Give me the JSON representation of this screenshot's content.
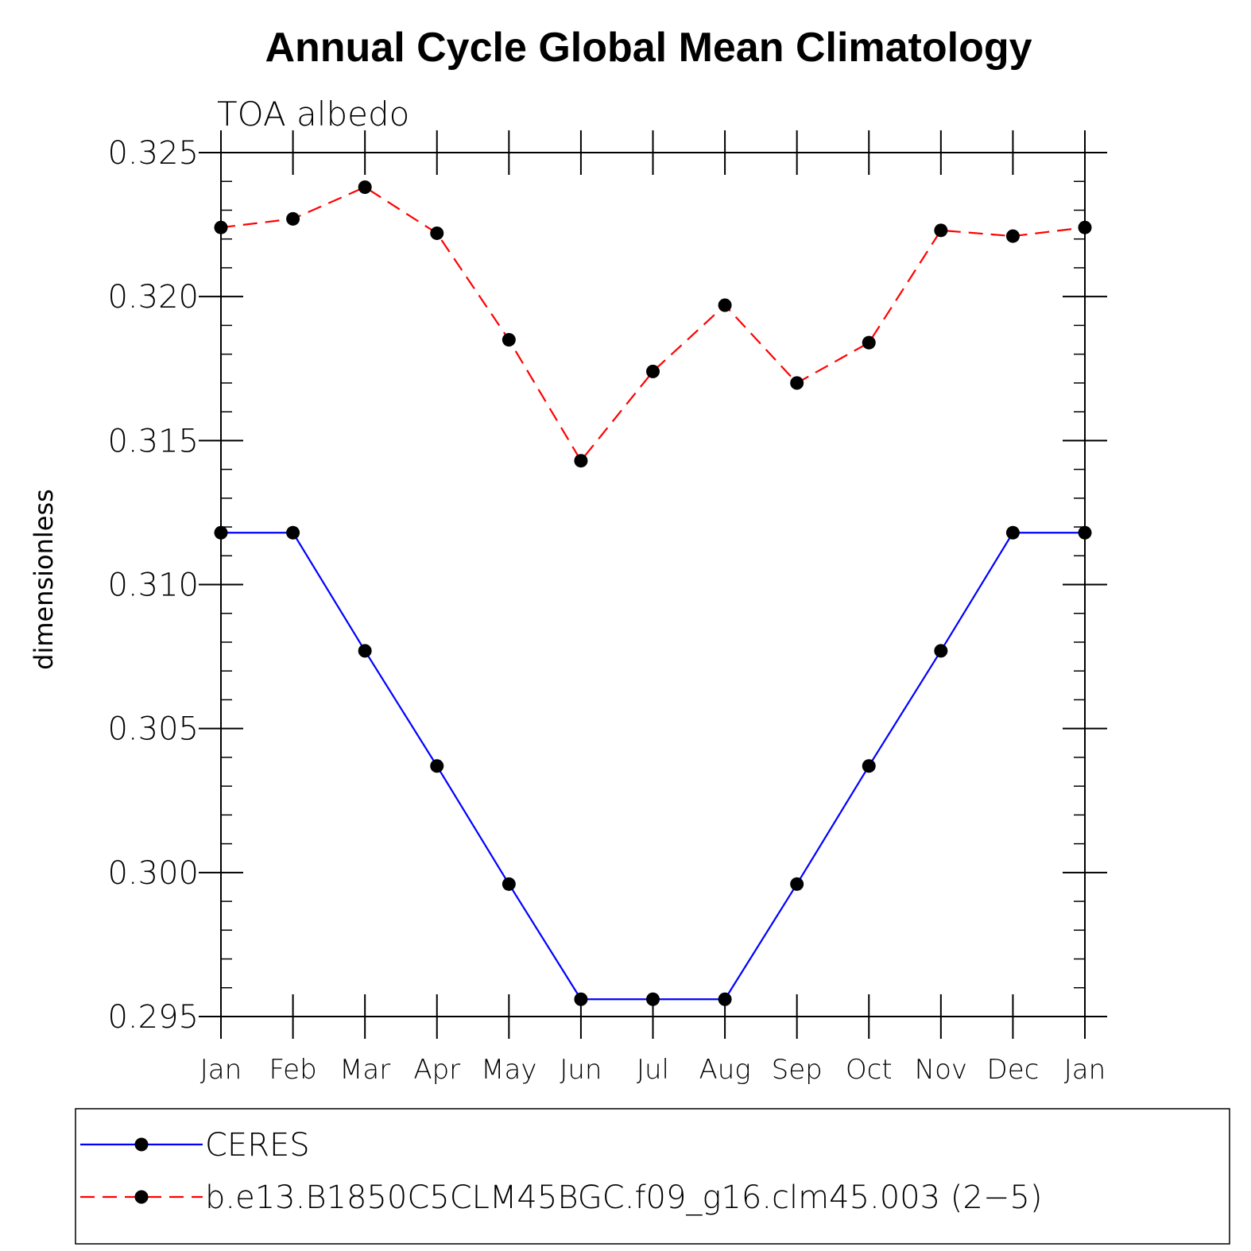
{
  "chart_data": {
    "type": "line",
    "title": "Annual Cycle Global Mean Climatology",
    "subtitle": "TOA albedo",
    "ylabel": "dimensionless",
    "xlabel": "",
    "categories": [
      "Jan",
      "Feb",
      "Mar",
      "Apr",
      "May",
      "Jun",
      "Jul",
      "Aug",
      "Sep",
      "Oct",
      "Nov",
      "Dec",
      "Jan"
    ],
    "ylim": [
      0.295,
      0.325
    ],
    "yticks": [
      "0.295",
      "0.300",
      "0.305",
      "0.310",
      "0.315",
      "0.320",
      "0.325"
    ],
    "grid": false,
    "legend_position": "bottom",
    "series": [
      {
        "name": "CERES",
        "color": "#0000ff",
        "dash": "solid",
        "marker": "filled-circle",
        "values": [
          0.3118,
          0.3118,
          0.3077,
          0.3037,
          0.2996,
          0.2956,
          0.2956,
          0.2956,
          0.2996,
          0.3037,
          0.3077,
          0.3118,
          0.3118
        ]
      },
      {
        "name": "b.e13.B1850C5CLM45BGC.f09_g16.clm45.003 (2−5)",
        "color": "#ff0000",
        "dash": "dashed",
        "marker": "filled-circle",
        "values": [
          0.3224,
          0.3227,
          0.3238,
          0.3222,
          0.3185,
          0.3143,
          0.3174,
          0.3197,
          0.317,
          0.3184,
          0.3223,
          0.3221,
          0.3224
        ]
      }
    ]
  }
}
